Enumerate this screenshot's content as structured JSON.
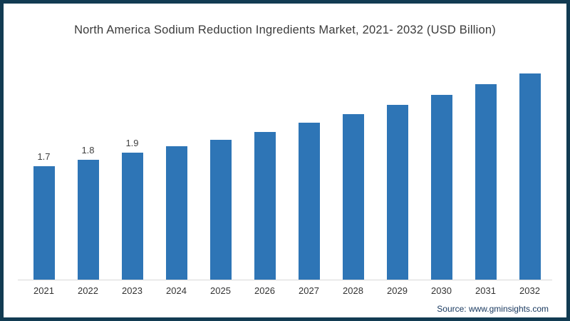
{
  "header": {
    "title": "North America Sodium Reduction Ingredients Market, 2021- 2032 (USD Billion)"
  },
  "footer": {
    "source": "Source: www.gminsights.com"
  },
  "colors": {
    "bar": "#2E75B6",
    "frame_border": "#123B52",
    "title_text": "#3B3B3B",
    "tick_text": "#333333",
    "value_label_text": "#404040",
    "axis_line": "#D9D9D9",
    "source_text": "#17375E"
  },
  "chart_data": {
    "type": "bar",
    "title": "North America Sodium Reduction Ingredients Market, 2021- 2032 (USD Billion)",
    "categories": [
      "2021",
      "2022",
      "2023",
      "2024",
      "2025",
      "2026",
      "2027",
      "2028",
      "2029",
      "2030",
      "2031",
      "2032"
    ],
    "values": [
      1.7,
      1.8,
      1.9,
      2.0,
      2.1,
      2.21,
      2.35,
      2.48,
      2.62,
      2.77,
      2.93,
      3.09
    ],
    "data_labels": {
      "2021": "1.7",
      "2022": "1.8",
      "2023": "1.9"
    },
    "xlabel": "",
    "ylabel": "",
    "ylim": [
      0,
      3.5
    ],
    "grid": false,
    "legend": "none",
    "y_axis_shown": false,
    "baseline_shown": true
  }
}
